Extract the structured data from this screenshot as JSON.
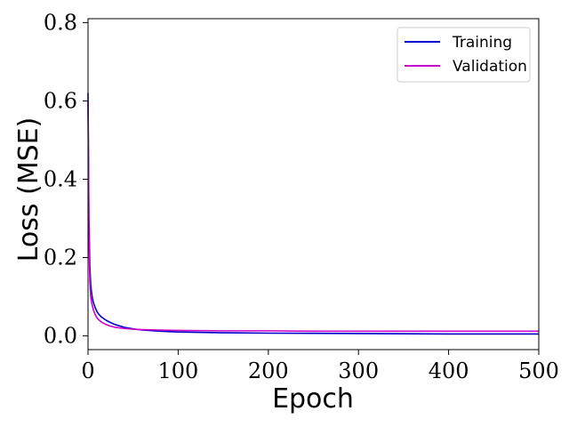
{
  "chart_data": {
    "type": "line",
    "xlabel": "Epoch",
    "ylabel": "Loss (MSE)",
    "xlim": [
      0,
      500
    ],
    "ylim": [
      -0.035,
      0.81
    ],
    "xticks": [
      0,
      100,
      200,
      300,
      400,
      500
    ],
    "xtick_labels": [
      "0",
      "100",
      "200",
      "300",
      "400",
      "500"
    ],
    "yticks": [
      0.0,
      0.2,
      0.4,
      0.6,
      0.8
    ],
    "ytick_labels": [
      "0.0",
      "0.2",
      "0.4",
      "0.6",
      "0.8"
    ],
    "grid": false,
    "legend": {
      "position": "top-right"
    },
    "x": [
      0,
      1,
      2,
      3,
      4,
      5,
      6,
      8,
      10,
      12,
      15,
      20,
      25,
      30,
      40,
      50,
      60,
      80,
      100,
      150,
      200,
      250,
      300,
      350,
      400,
      450,
      500
    ],
    "series": [
      {
        "name": "Training",
        "color": "#0000cc",
        "values": [
          0.62,
          0.3,
          0.18,
          0.13,
          0.11,
          0.095,
          0.085,
          0.072,
          0.062,
          0.055,
          0.048,
          0.04,
          0.034,
          0.029,
          0.022,
          0.018,
          0.015,
          0.012,
          0.01,
          0.008,
          0.007,
          0.0065,
          0.006,
          0.0055,
          0.005,
          0.005,
          0.005
        ]
      },
      {
        "name": "Validation",
        "color": "#cc00cc",
        "values": [
          0.6,
          0.25,
          0.14,
          0.1,
          0.085,
          0.075,
          0.066,
          0.054,
          0.046,
          0.041,
          0.035,
          0.029,
          0.025,
          0.022,
          0.019,
          0.017,
          0.016,
          0.015,
          0.014,
          0.013,
          0.013,
          0.012,
          0.012,
          0.012,
          0.012,
          0.012,
          0.012
        ]
      }
    ]
  }
}
